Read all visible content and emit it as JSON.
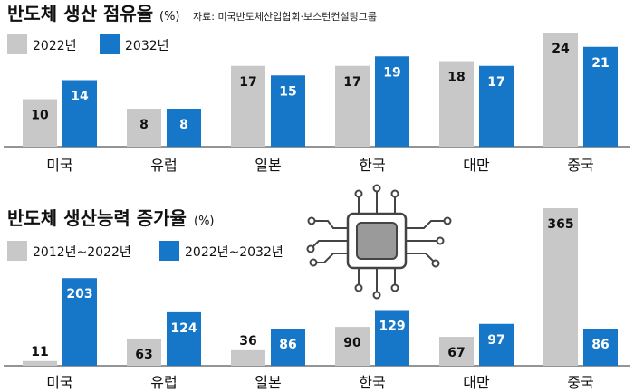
{
  "colors": {
    "gray": "#c8c8c8",
    "blue": "#1677c8",
    "axis": "#555555",
    "chip": "#9a9a9a",
    "chip_line": "#444444"
  },
  "icon": "microchip-icon",
  "chart_data": [
    {
      "type": "bar",
      "title": "반도체 생산 점유율",
      "unit": "(%)",
      "source": "자료: 미국반도체산업협회·보스턴컨설팅그룹",
      "categories": [
        "미국",
        "유럽",
        "일본",
        "한국",
        "대만",
        "중국"
      ],
      "series": [
        {
          "name": "2022년",
          "values": [
            10,
            8,
            17,
            17,
            18,
            24
          ]
        },
        {
          "name": "2032년",
          "values": [
            14,
            8,
            15,
            19,
            17,
            21
          ]
        }
      ],
      "ylim": [
        0,
        24
      ],
      "grid": false,
      "legend": "top-left"
    },
    {
      "type": "bar",
      "title": "반도체 생산능력 증가율",
      "unit": "(%)",
      "categories": [
        "미국",
        "유럽",
        "일본",
        "한국",
        "대만",
        "중국"
      ],
      "series": [
        {
          "name": "2012년~2022년",
          "values": [
            11,
            63,
            36,
            90,
            67,
            365
          ]
        },
        {
          "name": "2022년~2032년",
          "values": [
            203,
            124,
            86,
            129,
            97,
            86
          ]
        }
      ],
      "ylim": [
        0,
        365
      ],
      "grid": false,
      "legend": "top-left"
    }
  ]
}
